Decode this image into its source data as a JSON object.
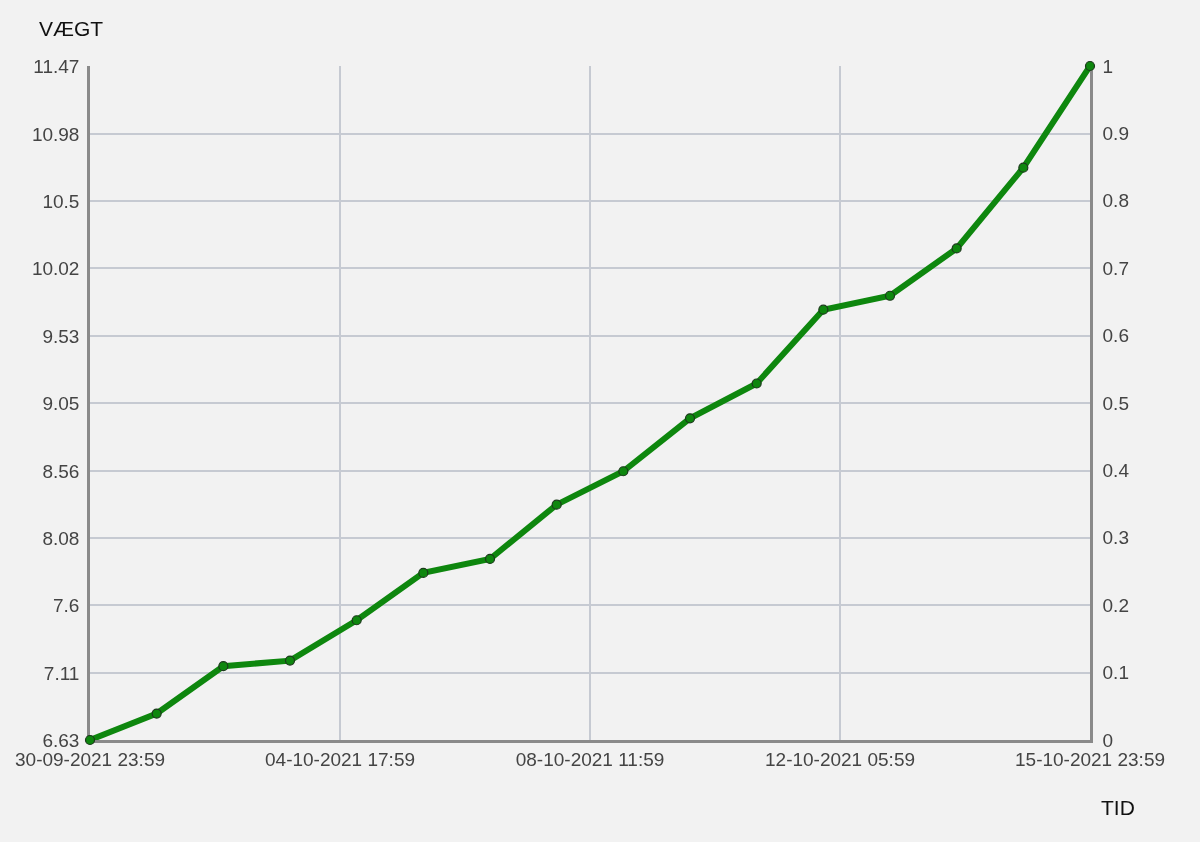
{
  "chart_data": {
    "type": "line",
    "xlabel": "TID",
    "ylabel": "VÆGT",
    "x": [
      "2021-09-30T23:59",
      "2021-10-01T23:59",
      "2021-10-02T23:59",
      "2021-10-03T23:59",
      "2021-10-04T23:59",
      "2021-10-05T23:59",
      "2021-10-06T23:59",
      "2021-10-07T23:59",
      "2021-10-08T23:59",
      "2021-10-09T23:59",
      "2021-10-10T23:59",
      "2021-10-11T23:59",
      "2021-10-12T23:59",
      "2021-10-13T23:59",
      "2021-10-14T23:59",
      "2021-10-15T23:59"
    ],
    "series": [
      {
        "color": "#0e870e",
        "values": [
          6.63,
          6.82,
          7.16,
          7.2,
          7.49,
          7.83,
          7.93,
          8.32,
          8.56,
          8.94,
          9.19,
          9.72,
          9.82,
          10.16,
          10.74,
          11.47
        ]
      }
    ],
    "xlim": [
      "2021-09-30T23:59",
      "2021-10-15T23:59"
    ],
    "xticks": [
      {
        "value": "2021-09-30T23:59",
        "label": "30-09-2021 23:59"
      },
      {
        "value": "2021-10-04T17:59",
        "label": "04-10-2021 17:59"
      },
      {
        "value": "2021-10-08T11:59",
        "label": "08-10-2021 11:59"
      },
      {
        "value": "2021-10-12T05:59",
        "label": "12-10-2021 05:59"
      },
      {
        "value": "2021-10-15T23:59",
        "label": "15-10-2021 23:59"
      }
    ],
    "ylim": [
      6.63,
      11.47
    ],
    "yticks": [
      6.63,
      7.11,
      7.6,
      8.08,
      8.56,
      9.05,
      9.53,
      10.02,
      10.5,
      10.98,
      11.47
    ],
    "y2lim": [
      0,
      1
    ],
    "y2ticks": [
      0,
      0.1,
      0.2,
      0.3,
      0.4,
      0.5,
      0.6,
      0.7,
      0.8,
      0.9,
      1
    ],
    "grid": true,
    "marker": "circle",
    "line_style": "solid"
  }
}
